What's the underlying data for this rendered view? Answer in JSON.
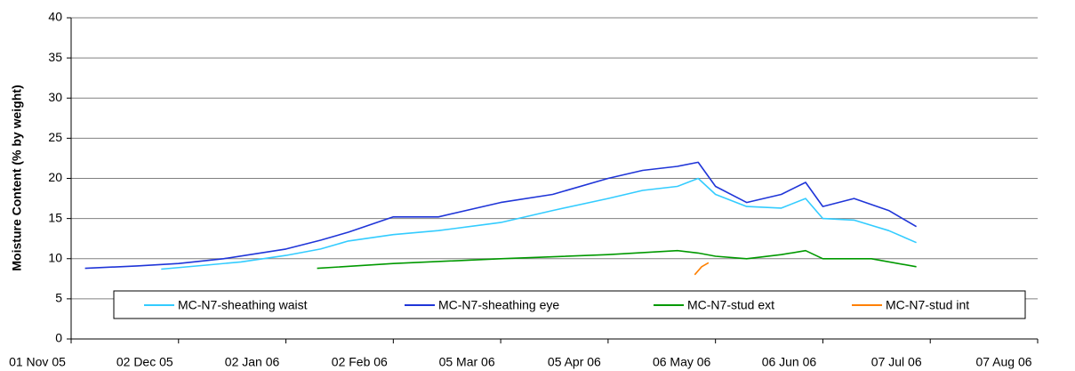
{
  "chart_data": {
    "type": "line",
    "y_label": "Moisture Content (% by weight)",
    "xlim": [
      "2005-11-01",
      "2006-08-07"
    ],
    "xticks": [
      {
        "value": "2005-11-01",
        "label": "01 Nov 05"
      },
      {
        "value": "2005-12-02",
        "label": "02 Dec 05"
      },
      {
        "value": "2006-01-02",
        "label": "02 Jan 06"
      },
      {
        "value": "2006-02-02",
        "label": "02 Feb 06"
      },
      {
        "value": "2006-03-05",
        "label": "05 Mar 06"
      },
      {
        "value": "2006-04-05",
        "label": "05 Apr 06"
      },
      {
        "value": "2006-05-06",
        "label": "06 May 06"
      },
      {
        "value": "2006-06-06",
        "label": "06 Jun 06"
      },
      {
        "value": "2006-07-07",
        "label": "07 Jul 06"
      },
      {
        "value": "2006-08-07",
        "label": "07 Aug 06"
      }
    ],
    "ylim": [
      0,
      40
    ],
    "yticks": [
      0,
      5,
      10,
      15,
      20,
      25,
      30,
      35,
      40
    ],
    "grid": true,
    "legend": "bottom",
    "series": [
      {
        "name": "MC-N7-sheathing waist",
        "color": "#33ccff",
        "x": [
          "2005-11-27",
          "2005-12-10",
          "2005-12-20",
          "2006-01-02",
          "2006-01-12",
          "2006-01-20",
          "2006-02-02",
          "2006-02-15",
          "2006-03-05",
          "2006-03-20",
          "2006-04-05",
          "2006-04-15",
          "2006-04-25",
          "2006-05-01",
          "2006-05-06",
          "2006-05-15",
          "2006-05-25",
          "2006-06-01",
          "2006-06-06",
          "2006-06-15",
          "2006-06-25",
          "2006-07-03"
        ],
        "values": [
          8.7,
          9.2,
          9.6,
          10.4,
          11.2,
          12.2,
          13,
          13.5,
          14.5,
          16,
          17.5,
          18.5,
          19,
          20,
          18,
          16.5,
          16.3,
          17.5,
          15,
          14.8,
          13.5,
          12
        ]
      },
      {
        "name": "MC-N7-sheathing eye",
        "color": "#1f35d8",
        "x": [
          "2005-11-05",
          "2005-11-20",
          "2005-12-02",
          "2005-12-15",
          "2006-01-02",
          "2006-01-12",
          "2006-01-20",
          "2006-02-02",
          "2006-02-15",
          "2006-03-05",
          "2006-03-20",
          "2006-04-05",
          "2006-04-15",
          "2006-04-25",
          "2006-05-01",
          "2006-05-06",
          "2006-05-15",
          "2006-05-25",
          "2006-06-01",
          "2006-06-06",
          "2006-06-15",
          "2006-06-25",
          "2006-07-03"
        ],
        "values": [
          8.8,
          9.1,
          9.4,
          10,
          11.2,
          12.3,
          13.3,
          15.2,
          15.2,
          17,
          18,
          20,
          21,
          21.5,
          22,
          19,
          17,
          18,
          19.5,
          16.5,
          17.5,
          16,
          14
        ]
      },
      {
        "name": "MC-N7-stud ext",
        "color": "#009900",
        "x": [
          "2006-01-11",
          "2006-02-02",
          "2006-03-05",
          "2006-04-05",
          "2006-04-25",
          "2006-05-01",
          "2006-05-06",
          "2006-05-15",
          "2006-05-25",
          "2006-06-01",
          "2006-06-06",
          "2006-06-20",
          "2006-07-03"
        ],
        "values": [
          8.8,
          9.4,
          10,
          10.5,
          11,
          10.7,
          10.3,
          10,
          10.5,
          11,
          10,
          10,
          9
        ]
      },
      {
        "name": "MC-N7-stud int",
        "color": "#ff8000",
        "x": [
          "2006-04-30",
          "2006-05-02",
          "2006-05-04"
        ],
        "values": [
          8,
          9,
          9.5
        ]
      }
    ]
  }
}
